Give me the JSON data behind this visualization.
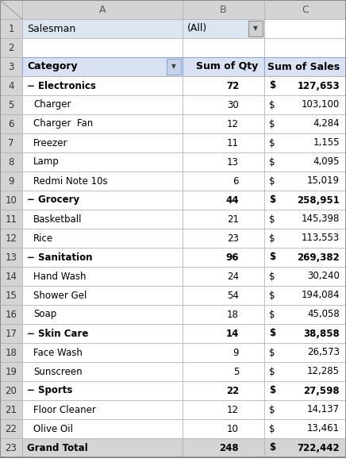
{
  "figsize": [
    4.36,
    5.97
  ],
  "dpi": 100,
  "header_row": [
    "A",
    "B",
    "C"
  ],
  "rows_data": [
    {
      "row_num": 1,
      "type": "salesman",
      "label": "Salesman",
      "b_text": "(All)",
      "qty": "",
      "dollar": "",
      "sales": ""
    },
    {
      "row_num": 2,
      "type": "empty",
      "label": "",
      "b_text": "",
      "qty": "",
      "dollar": "",
      "sales": ""
    },
    {
      "row_num": 3,
      "type": "header",
      "label": "Category",
      "b_text": "",
      "qty": "Sum of Qty",
      "dollar": "",
      "sales": "Sum of Sales"
    },
    {
      "row_num": 4,
      "type": "bold",
      "label": "− Electronics",
      "indent": false,
      "qty": "72",
      "dollar": "$",
      "sales": "127,653"
    },
    {
      "row_num": 5,
      "type": "sub",
      "label": "Charger",
      "indent": true,
      "qty": "30",
      "dollar": "$",
      "sales": "103,100"
    },
    {
      "row_num": 6,
      "type": "sub",
      "label": "Charger  Fan",
      "indent": true,
      "qty": "12",
      "dollar": "$",
      "sales": "4,284"
    },
    {
      "row_num": 7,
      "type": "sub",
      "label": "Freezer",
      "indent": true,
      "qty": "11",
      "dollar": "$",
      "sales": "1,155"
    },
    {
      "row_num": 8,
      "type": "sub",
      "label": "Lamp",
      "indent": true,
      "qty": "13",
      "dollar": "$",
      "sales": "4,095"
    },
    {
      "row_num": 9,
      "type": "sub",
      "label": "Redmi Note 10s",
      "indent": true,
      "qty": "6",
      "dollar": "$",
      "sales": "15,019"
    },
    {
      "row_num": 10,
      "type": "bold",
      "label": "− Grocery",
      "indent": false,
      "qty": "44",
      "dollar": "$",
      "sales": "258,951"
    },
    {
      "row_num": 11,
      "type": "sub",
      "label": "Basketball",
      "indent": true,
      "qty": "21",
      "dollar": "$",
      "sales": "145,398"
    },
    {
      "row_num": 12,
      "type": "sub",
      "label": "Rice",
      "indent": true,
      "qty": "23",
      "dollar": "$",
      "sales": "113,553"
    },
    {
      "row_num": 13,
      "type": "bold",
      "label": "− Sanitation",
      "indent": false,
      "qty": "96",
      "dollar": "$",
      "sales": "269,382"
    },
    {
      "row_num": 14,
      "type": "sub",
      "label": "Hand Wash",
      "indent": true,
      "qty": "24",
      "dollar": "$",
      "sales": "30,240"
    },
    {
      "row_num": 15,
      "type": "sub",
      "label": "Shower Gel",
      "indent": true,
      "qty": "54",
      "dollar": "$",
      "sales": "194,084"
    },
    {
      "row_num": 16,
      "type": "sub",
      "label": "Soap",
      "indent": true,
      "qty": "18",
      "dollar": "$",
      "sales": "45,058"
    },
    {
      "row_num": 17,
      "type": "bold",
      "label": "− Skin Care",
      "indent": false,
      "qty": "14",
      "dollar": "$",
      "sales": "38,858"
    },
    {
      "row_num": 18,
      "type": "sub",
      "label": "Face Wash",
      "indent": true,
      "qty": "9",
      "dollar": "$",
      "sales": "26,573"
    },
    {
      "row_num": 19,
      "type": "sub",
      "label": "Sunscreen",
      "indent": true,
      "qty": "5",
      "dollar": "$",
      "sales": "12,285"
    },
    {
      "row_num": 20,
      "type": "bold",
      "label": "− Sports",
      "indent": false,
      "qty": "22",
      "dollar": "$",
      "sales": "27,598"
    },
    {
      "row_num": 21,
      "type": "sub",
      "label": "Floor Cleaner",
      "indent": true,
      "qty": "12",
      "dollar": "$",
      "sales": "14,137"
    },
    {
      "row_num": 22,
      "type": "sub",
      "label": "Olive Oil",
      "indent": true,
      "qty": "10",
      "dollar": "$",
      "sales": "13,461"
    },
    {
      "row_num": 23,
      "type": "grand",
      "label": "Grand Total",
      "indent": false,
      "qty": "248",
      "dollar": "$",
      "sales": "722,442"
    }
  ],
  "col_header_bg": "#d4d4d4",
  "row_header_bg": "#d4d4d4",
  "pivot_header_bg": "#d9e1f2",
  "salesman_bg": "#dce6f1",
  "white_bg": "#ffffff",
  "grand_bg": "#d4d4d4",
  "bold_text": "#000000",
  "normal_text": "#000000",
  "grid_color": "#b0b0b0",
  "col_header_text": "#595959"
}
